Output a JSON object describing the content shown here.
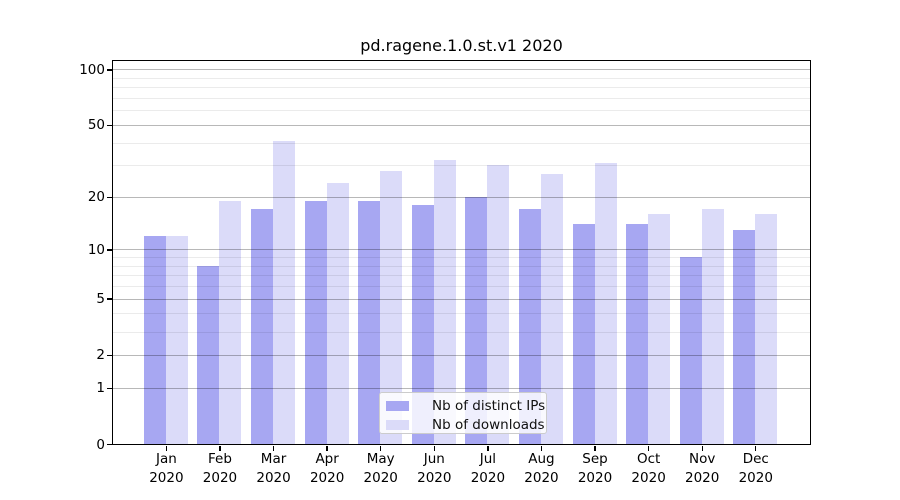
{
  "figure_title": "pd.ragene.1.0.st.v1 2020",
  "chart_data": {
    "type": "bar",
    "title": "pd.ragene.1.0.st.v1 2020",
    "categories": [
      "Jan",
      "Feb",
      "Mar",
      "Apr",
      "May",
      "Jun",
      "Jul",
      "Aug",
      "Sep",
      "Oct",
      "Nov",
      "Dec"
    ],
    "x_tick_year": "2020",
    "series": [
      {
        "name": "Nb of distinct IPs",
        "color": "#a7a7f2",
        "values": [
          12,
          8,
          17,
          19,
          19,
          18,
          20,
          17,
          14,
          14,
          9,
          13
        ]
      },
      {
        "name": "Nb of downloads",
        "color": "#dbdbf9",
        "values": [
          12,
          19,
          41,
          24,
          28,
          32,
          30,
          27,
          31,
          16,
          17,
          16
        ]
      }
    ],
    "yscale": "log1p",
    "ylim": [
      0,
      100
    ],
    "yticks": [
      100,
      50,
      20,
      10,
      5,
      2,
      1,
      0
    ],
    "yticks_minor": [
      3,
      4,
      6,
      7,
      8,
      9,
      30,
      40,
      60,
      70,
      80,
      90
    ],
    "grid": true,
    "legend_position": "bottom-center"
  }
}
